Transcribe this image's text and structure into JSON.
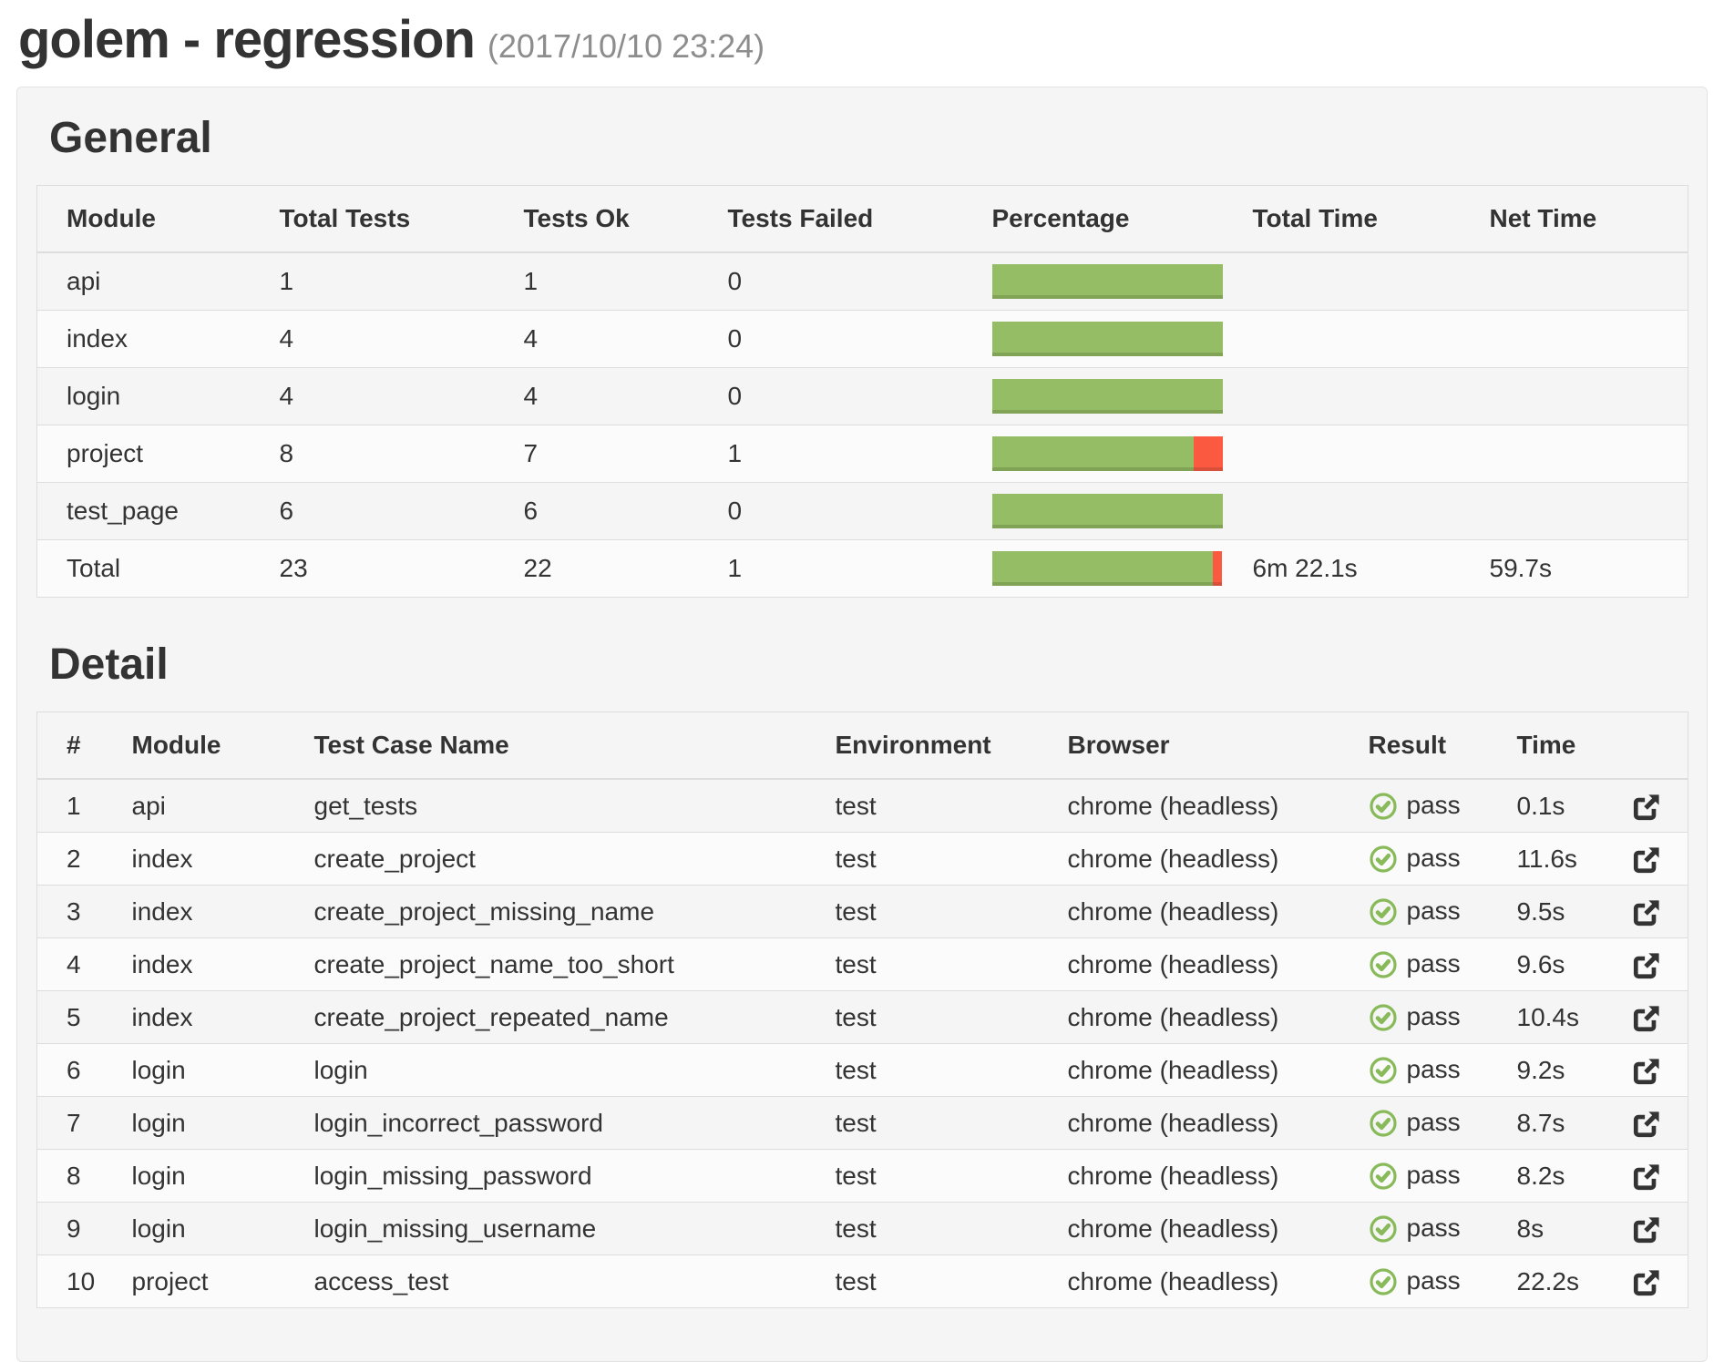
{
  "page": {
    "title": "golem - regression",
    "timestamp": "(2017/10/10 23:24)"
  },
  "colors": {
    "bar_green": "#95bd65",
    "bar_green_edge": "#81a356",
    "bar_red": "#fb5a40",
    "bar_red_edge": "#d9503a",
    "pass_green": "#88ba5a",
    "link_icon_dark": "#333333"
  },
  "general": {
    "heading": "General",
    "columns": [
      "Module",
      "Total Tests",
      "Tests Ok",
      "Tests Failed",
      "Percentage",
      "Total Time",
      "Net Time"
    ],
    "rows": [
      {
        "module": "api",
        "total": "1",
        "ok": "1",
        "failed": "0",
        "pct_ok": 100,
        "pct_fail": 0,
        "total_time": "",
        "net_time": ""
      },
      {
        "module": "index",
        "total": "4",
        "ok": "4",
        "failed": "0",
        "pct_ok": 100,
        "pct_fail": 0,
        "total_time": "",
        "net_time": ""
      },
      {
        "module": "login",
        "total": "4",
        "ok": "4",
        "failed": "0",
        "pct_ok": 100,
        "pct_fail": 0,
        "total_time": "",
        "net_time": ""
      },
      {
        "module": "project",
        "total": "8",
        "ok": "7",
        "failed": "1",
        "pct_ok": 87.5,
        "pct_fail": 12.5,
        "total_time": "",
        "net_time": ""
      },
      {
        "module": "test_page",
        "total": "6",
        "ok": "6",
        "failed": "0",
        "pct_ok": 100,
        "pct_fail": 0,
        "total_time": "",
        "net_time": ""
      }
    ],
    "total_row": {
      "module": "Total",
      "total": "23",
      "ok": "22",
      "failed": "1",
      "pct_ok": 95.7,
      "pct_fail": 4.3,
      "total_time": "6m 22.1s",
      "net_time": "59.7s"
    }
  },
  "detail": {
    "heading": "Detail",
    "columns": [
      "#",
      "Module",
      "Test Case Name",
      "Environment",
      "Browser",
      "Result",
      "Time",
      ""
    ],
    "pass_label": "pass",
    "rows": [
      {
        "num": "1",
        "module": "api",
        "test_case": "get_tests",
        "environment": "test",
        "browser": "chrome (headless)",
        "result": "pass",
        "time": "0.1s"
      },
      {
        "num": "2",
        "module": "index",
        "test_case": "create_project",
        "environment": "test",
        "browser": "chrome (headless)",
        "result": "pass",
        "time": "11.6s"
      },
      {
        "num": "3",
        "module": "index",
        "test_case": "create_project_missing_name",
        "environment": "test",
        "browser": "chrome (headless)",
        "result": "pass",
        "time": "9.5s"
      },
      {
        "num": "4",
        "module": "index",
        "test_case": "create_project_name_too_short",
        "environment": "test",
        "browser": "chrome (headless)",
        "result": "pass",
        "time": "9.6s"
      },
      {
        "num": "5",
        "module": "index",
        "test_case": "create_project_repeated_name",
        "environment": "test",
        "browser": "chrome (headless)",
        "result": "pass",
        "time": "10.4s"
      },
      {
        "num": "6",
        "module": "login",
        "test_case": "login",
        "environment": "test",
        "browser": "chrome (headless)",
        "result": "pass",
        "time": "9.2s"
      },
      {
        "num": "7",
        "module": "login",
        "test_case": "login_incorrect_password",
        "environment": "test",
        "browser": "chrome (headless)",
        "result": "pass",
        "time": "8.7s"
      },
      {
        "num": "8",
        "module": "login",
        "test_case": "login_missing_password",
        "environment": "test",
        "browser": "chrome (headless)",
        "result": "pass",
        "time": "8.2s"
      },
      {
        "num": "9",
        "module": "login",
        "test_case": "login_missing_username",
        "environment": "test",
        "browser": "chrome (headless)",
        "result": "pass",
        "time": "8s"
      },
      {
        "num": "10",
        "module": "project",
        "test_case": "access_test",
        "environment": "test",
        "browser": "chrome (headless)",
        "result": "pass",
        "time": "22.2s"
      }
    ]
  }
}
